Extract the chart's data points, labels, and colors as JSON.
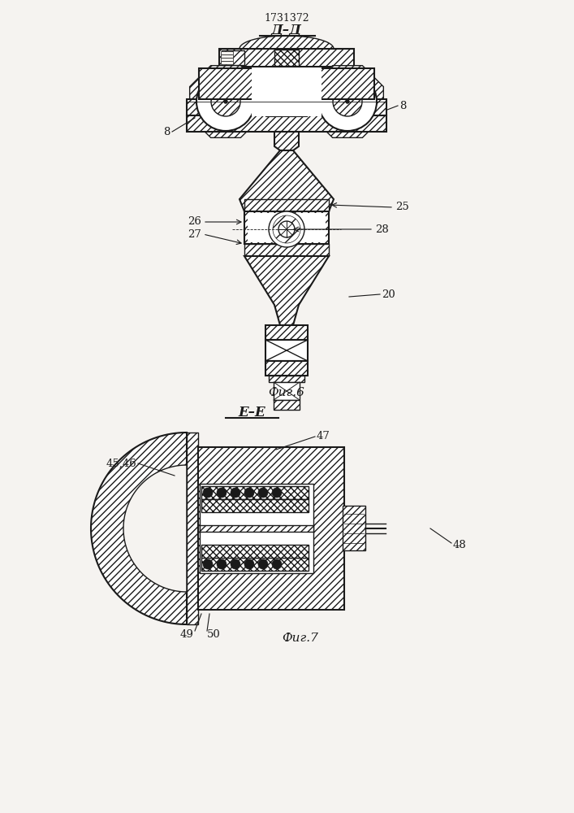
{
  "bg_color": "#f5f3f0",
  "line_color": "#1a1a1a",
  "patent_number": "1731372",
  "fig6_label": "Фиг.6",
  "fig7_label": "Фиг.7",
  "section_dd": "Д–Д",
  "section_ee": "Е–Е"
}
